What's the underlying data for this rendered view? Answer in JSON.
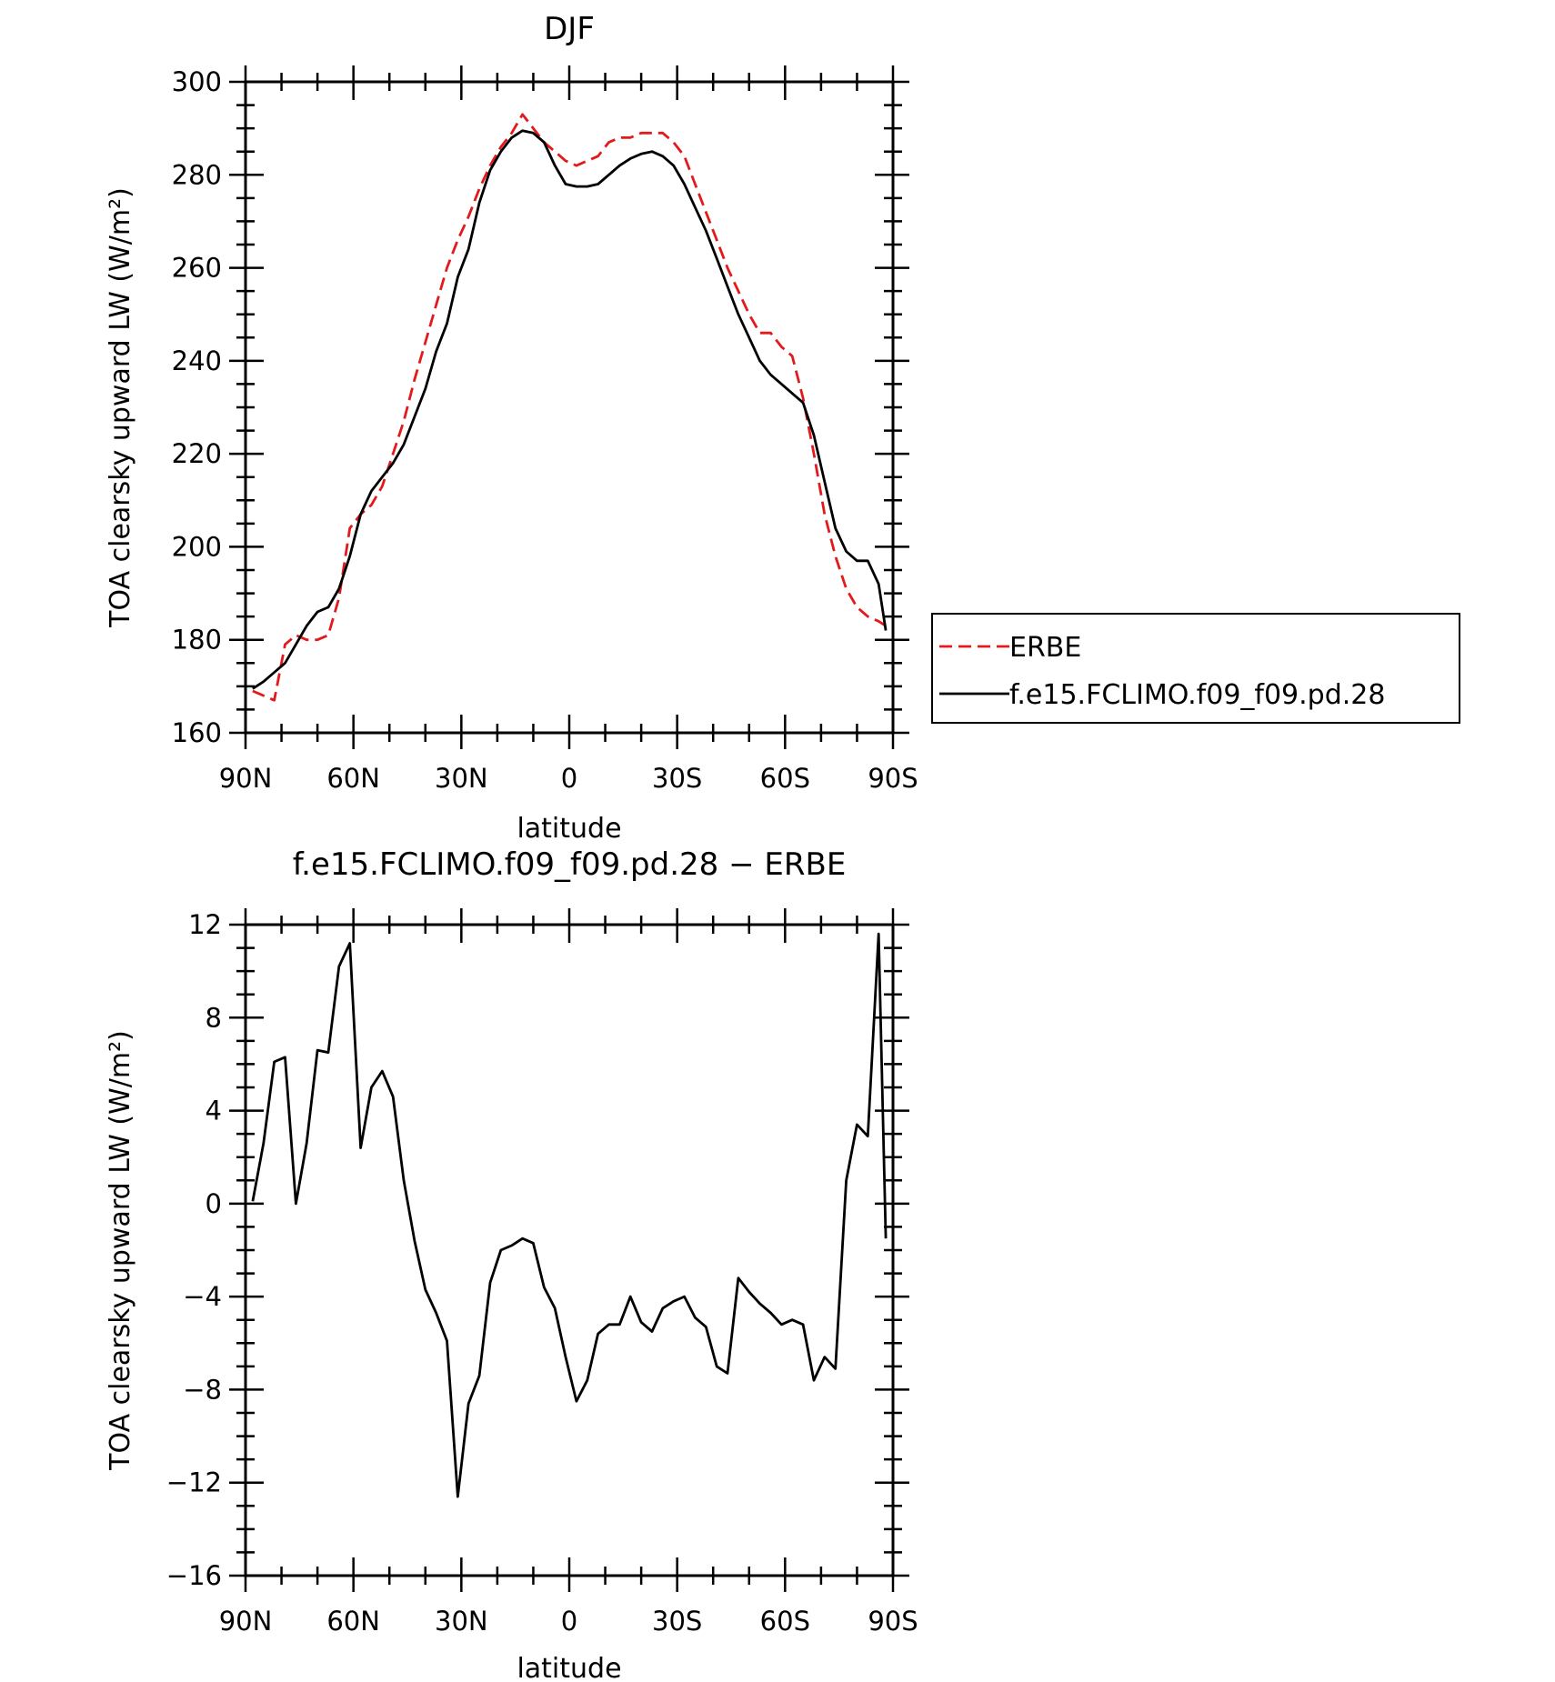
{
  "chart_data": [
    {
      "type": "line",
      "title": "DJF",
      "xlabel": "latitude",
      "ylabel": "TOA clearsky upward LW (W/m²)",
      "xlim": [
        -90,
        90
      ],
      "ylim": [
        160,
        300
      ],
      "x_tick_values": [
        -90,
        -60,
        -30,
        0,
        30,
        60,
        90
      ],
      "x_tick_labels": [
        "90N",
        "60N",
        "30N",
        "0",
        "30S",
        "60S",
        "90S"
      ],
      "y_ticks": [
        160,
        180,
        200,
        220,
        240,
        260,
        280,
        300
      ],
      "legend": {
        "placement": "right"
      },
      "series": [
        {
          "name": "ERBE",
          "color": "#e31a1c",
          "dash": "dashed",
          "x": [
            -88,
            -85,
            -82,
            -79,
            -76,
            -73,
            -70,
            -67,
            -64,
            -61,
            -58,
            -55,
            -52,
            -49,
            -46,
            -43,
            -40,
            -37,
            -34,
            -31,
            -28,
            -25,
            -22,
            -19,
            -16,
            -13,
            -10,
            -7,
            -4,
            -1,
            2,
            5,
            8,
            11,
            14,
            17,
            20,
            23,
            26,
            29,
            32,
            35,
            38,
            41,
            44,
            47,
            50,
            53,
            56,
            59,
            62,
            65,
            68,
            71,
            74,
            77,
            80,
            83,
            86,
            88
          ],
          "y": [
            169,
            168,
            167,
            179,
            181,
            180,
            180,
            181,
            189,
            204,
            207,
            209,
            213,
            220,
            227,
            236,
            244,
            252,
            260,
            266,
            271,
            277,
            282,
            286,
            289,
            293,
            290,
            287,
            285,
            283,
            282,
            283,
            284,
            287,
            288,
            288,
            289,
            289,
            289,
            287,
            284,
            278,
            272,
            266,
            260,
            255,
            250,
            246,
            246,
            243,
            241,
            232,
            220,
            207,
            198,
            191,
            187,
            185,
            184,
            183
          ]
        },
        {
          "name": "f.e15.FCLIMO.f09_f09.pd.28",
          "color": "#000000",
          "dash": "solid",
          "x": [
            -88,
            -85,
            -82,
            -79,
            -76,
            -73,
            -70,
            -67,
            -64,
            -61,
            -58,
            -55,
            -52,
            -49,
            -46,
            -43,
            -40,
            -37,
            -34,
            -31,
            -28,
            -25,
            -22,
            -19,
            -16,
            -13,
            -10,
            -7,
            -4,
            -1,
            2,
            5,
            8,
            11,
            14,
            17,
            20,
            23,
            26,
            29,
            32,
            35,
            38,
            41,
            44,
            47,
            50,
            53,
            56,
            59,
            62,
            65,
            68,
            71,
            74,
            77,
            80,
            83,
            86,
            88
          ],
          "y": [
            169.5,
            171,
            173,
            175,
            179,
            183,
            186,
            187,
            191,
            198,
            207,
            212,
            215,
            218,
            222,
            228,
            234,
            242,
            248,
            258,
            264,
            274,
            281,
            285,
            288,
            289.5,
            289,
            287,
            282,
            278,
            277.5,
            277.5,
            278,
            280,
            282,
            283.5,
            284.5,
            285,
            284,
            282,
            278,
            273,
            268,
            262,
            256,
            250,
            245,
            240,
            237,
            235,
            233,
            231,
            224,
            214,
            204,
            199,
            197,
            197,
            192,
            182
          ]
        }
      ]
    },
    {
      "type": "line",
      "title": "f.e15.FCLIMO.f09_f09.pd.28 − ERBE",
      "xlabel": "latitude",
      "ylabel": "TOA clearsky upward LW (W/m²)",
      "xlim": [
        -90,
        90
      ],
      "ylim": [
        -16,
        12
      ],
      "x_tick_values": [
        -90,
        -60,
        -30,
        0,
        30,
        60,
        90
      ],
      "x_tick_labels": [
        "90N",
        "60N",
        "30N",
        "0",
        "30S",
        "60S",
        "90S"
      ],
      "y_ticks": [
        -16,
        -12,
        -8,
        -4,
        0,
        4,
        8,
        12
      ],
      "series": [
        {
          "color": "#000000",
          "dash": "solid",
          "x": [
            -88,
            -85,
            -82,
            -79,
            -76,
            -73,
            -70,
            -67,
            -64,
            -61,
            -58,
            -55,
            -52,
            -49,
            -46,
            -43,
            -40,
            -37,
            -34,
            -31,
            -28,
            -25,
            -22,
            -19,
            -16,
            -13,
            -10,
            -7,
            -4,
            -1,
            2,
            5,
            8,
            11,
            14,
            17,
            20,
            23,
            26,
            29,
            32,
            35,
            38,
            41,
            44,
            47,
            50,
            53,
            56,
            59,
            62,
            65,
            68,
            71,
            74,
            77,
            80,
            83,
            86,
            88
          ],
          "y": [
            0.1,
            2.6,
            6.1,
            6.3,
            0.0,
            2.6,
            6.6,
            6.5,
            10.2,
            11.2,
            2.4,
            5.0,
            5.7,
            4.6,
            1.0,
            -1.6,
            -3.7,
            -4.7,
            -5.9,
            -12.6,
            -8.6,
            -7.4,
            -3.4,
            -2.0,
            -1.8,
            -1.5,
            -1.7,
            -3.6,
            -4.5,
            -6.6,
            -8.5,
            -7.6,
            -5.6,
            -5.2,
            -5.2,
            -4.0,
            -5.1,
            -5.5,
            -4.5,
            -4.2,
            -4.0,
            -4.9,
            -5.3,
            -7.0,
            -7.3,
            -3.2,
            -3.8,
            -4.3,
            -4.7,
            -5.2,
            -5.0,
            -5.2,
            -7.6,
            -6.6,
            -7.1,
            1.0,
            3.4,
            2.9,
            11.6,
            -1.5
          ]
        }
      ]
    }
  ]
}
